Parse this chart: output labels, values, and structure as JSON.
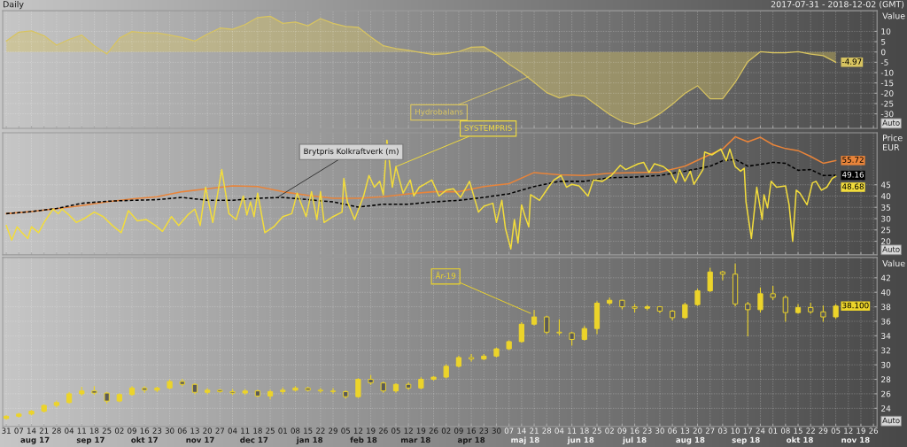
{
  "chart_data": [
    {
      "type": "area",
      "title": "Daily",
      "subtitle": "2017-07-31 - 2018-12-02 (GMT)",
      "ylabel": "Value",
      "x": [
        "2017-07-31",
        "2017-08-07",
        "2017-08-14",
        "2017-08-21",
        "2017-08-28",
        "2017-09-04",
        "2017-09-11",
        "2017-09-18",
        "2017-09-25",
        "2017-10-02",
        "2017-10-09",
        "2017-10-16",
        "2017-10-23",
        "2017-10-30",
        "2017-11-06",
        "2017-11-13",
        "2017-11-20",
        "2017-11-27",
        "2017-12-04",
        "2017-12-11",
        "2017-12-18",
        "2017-12-25",
        "2018-01-01",
        "2018-01-08",
        "2018-01-15",
        "2018-01-22",
        "2018-01-29",
        "2018-02-05",
        "2018-02-12",
        "2018-02-19",
        "2018-02-26",
        "2018-03-05",
        "2018-03-12",
        "2018-03-19",
        "2018-03-26",
        "2018-04-02",
        "2018-04-09",
        "2018-04-16",
        "2018-04-23",
        "2018-04-30",
        "2018-05-07",
        "2018-05-14",
        "2018-05-21",
        "2018-05-28",
        "2018-06-04",
        "2018-06-11",
        "2018-06-18",
        "2018-06-25",
        "2018-07-02",
        "2018-07-09",
        "2018-07-16",
        "2018-07-23",
        "2018-07-30",
        "2018-08-06",
        "2018-08-13",
        "2018-08-20",
        "2018-08-27",
        "2018-09-03",
        "2018-09-10",
        "2018-09-17",
        "2018-09-24",
        "2018-10-01",
        "2018-10-08",
        "2018-10-15",
        "2018-10-22",
        "2018-10-29",
        "2018-11-05"
      ],
      "series": [
        {
          "color": "#d8c460",
          "values": [
            5.3,
            9.6,
            10.2,
            7.9,
            3.3,
            6.1,
            8.2,
            3.0,
            -1.0,
            6.7,
            9.9,
            9.3,
            9.3,
            8.2,
            7.0,
            5.3,
            8.7,
            11.6,
            11.0,
            13.3,
            16.7,
            17.3,
            13.9,
            14.5,
            12.7,
            16.2,
            13.9,
            12.4,
            12.0,
            7.3,
            3.0,
            1.7,
            0.8,
            -0.3,
            -1.2,
            -0.8,
            0.2,
            2.3,
            2.5,
            -1.3,
            -5.9,
            -9.9,
            -14.7,
            -19.7,
            -22.3,
            -20.8,
            -21.4,
            -25.9,
            -30.3,
            -33.7,
            -35.0,
            -33.5,
            -29.9,
            -25.3,
            -20.1,
            -16.4,
            -22.7,
            -22.7,
            -14.7,
            -4.7,
            0.1,
            -0.4,
            -0.4,
            0.1,
            -1.0,
            -1.8,
            -4.97
          ]
        }
      ],
      "xlim": [
        "2017-07-29",
        "2018-11-28"
      ],
      "ylim": [
        -37,
        20
      ],
      "yticks": [
        -30,
        -25,
        -20,
        -15,
        -10,
        -5,
        0,
        5,
        10
      ],
      "grid": true,
      "tick_labels": "y",
      "annotations": [
        {
          "text": "Hydrobalans",
          "x": "2018-05-18",
          "y": -12
        },
        {
          "text": "-4.97",
          "x": "2018-11-05",
          "y": -4.97
        },
        "Auto"
      ]
    },
    {
      "type": "line",
      "ylabel": "Price EUR",
      "series": [
        {
          "color": "#e8843a",
          "x": [
            "2017-07-31",
            "2017-08-14",
            "2017-08-28",
            "2017-09-11",
            "2017-09-25",
            "2017-10-09",
            "2017-10-23",
            "2017-11-06",
            "2017-11-20",
            "2017-12-04",
            "2017-12-18",
            "2018-01-01",
            "2018-01-15",
            "2018-01-29",
            "2018-02-12",
            "2018-02-26",
            "2018-03-12",
            "2018-03-26",
            "2018-04-09",
            "2018-04-23",
            "2018-05-07",
            "2018-05-21",
            "2018-06-04",
            "2018-06-18",
            "2018-07-02",
            "2018-07-16",
            "2018-07-30",
            "2018-08-13",
            "2018-08-27",
            "2018-09-03",
            "2018-09-10",
            "2018-09-17",
            "2018-09-24",
            "2018-10-01",
            "2018-10-08",
            "2018-10-15",
            "2018-10-22",
            "2018-10-29",
            "2018-11-05"
          ],
          "values": [
            32.2,
            33.1,
            34.4,
            35.8,
            37.4,
            38.7,
            39.7,
            41.9,
            43.2,
            44.5,
            44.2,
            41.9,
            40.3,
            39.0,
            39.0,
            39.7,
            41.0,
            41.9,
            41.9,
            44.2,
            45.5,
            50.4,
            49.4,
            49.1,
            50.1,
            50.4,
            50.6,
            53.2,
            58.4,
            60.8,
            66.2,
            64.0,
            66.0,
            62.7,
            61.0,
            60.1,
            57.5,
            54.5,
            55.72
          ]
        },
        {
          "color": "#000000",
          "line_style": "dashed",
          "x": [
            "2017-07-31",
            "2017-08-14",
            "2017-08-28",
            "2017-09-11",
            "2017-09-25",
            "2017-10-09",
            "2017-10-23",
            "2017-11-06",
            "2017-11-20",
            "2017-12-04",
            "2017-12-18",
            "2018-01-01",
            "2018-01-15",
            "2018-01-29",
            "2018-02-12",
            "2018-02-26",
            "2018-03-12",
            "2018-03-26",
            "2018-04-09",
            "2018-04-23",
            "2018-05-07",
            "2018-05-21",
            "2018-06-04",
            "2018-06-18",
            "2018-07-02",
            "2018-07-16",
            "2018-07-30",
            "2018-08-13",
            "2018-08-27",
            "2018-09-03",
            "2018-09-10",
            "2018-09-17",
            "2018-09-24",
            "2018-10-01",
            "2018-10-08",
            "2018-10-15",
            "2018-10-22",
            "2018-10-29",
            "2018-11-05"
          ],
          "values": [
            32.2,
            33.1,
            34.5,
            36.8,
            37.7,
            38.1,
            38.4,
            39.4,
            38.1,
            38.1,
            39.0,
            39.4,
            38.4,
            37.4,
            35.1,
            36.4,
            36.4,
            37.4,
            38.1,
            39.4,
            41.0,
            44.2,
            46.5,
            46.5,
            48.1,
            48.4,
            49.1,
            51.0,
            53.2,
            55.6,
            56.2,
            53.2,
            54.0,
            54.9,
            54.5,
            51.4,
            51.7,
            49.1,
            49.16
          ]
        },
        {
          "color": "#f2dc3c",
          "x": [
            "2017-07-31",
            "2017-08-03",
            "2017-08-06",
            "2017-08-08",
            "2017-08-12",
            "2017-08-14",
            "2017-08-18",
            "2017-08-21",
            "2017-08-26",
            "2017-08-29",
            "2017-08-31",
            "2017-09-04",
            "2017-09-08",
            "2017-09-13",
            "2017-09-18",
            "2017-09-23",
            "2017-09-28",
            "2017-10-03",
            "2017-10-07",
            "2017-10-12",
            "2017-10-17",
            "2017-10-22",
            "2017-10-26",
            "2017-10-31",
            "2017-11-04",
            "2017-11-09",
            "2017-11-13",
            "2017-11-16",
            "2017-11-19",
            "2017-11-23",
            "2017-11-28",
            "2017-12-02",
            "2017-12-06",
            "2017-12-10",
            "2017-12-12",
            "2017-12-14",
            "2017-12-16",
            "2017-12-18",
            "2017-12-22",
            "2017-12-27",
            "2018-01-01",
            "2018-01-06",
            "2018-01-09",
            "2018-01-14",
            "2018-01-17",
            "2018-01-20",
            "2018-01-22",
            "2018-01-24",
            "2018-01-29",
            "2018-02-03",
            "2018-02-04",
            "2018-02-06",
            "2018-02-10",
            "2018-02-15",
            "2018-02-18",
            "2018-02-21",
            "2018-02-24",
            "2018-02-26",
            "2018-02-28",
            "2018-03-03",
            "2018-03-05",
            "2018-03-09",
            "2018-03-13",
            "2018-03-15",
            "2018-03-18",
            "2018-03-21",
            "2018-03-25",
            "2018-03-29",
            "2018-04-02",
            "2018-04-06",
            "2018-04-10",
            "2018-04-15",
            "2018-04-20",
            "2018-04-23",
            "2018-04-28",
            "2018-04-30",
            "2018-05-03",
            "2018-05-05",
            "2018-05-08",
            "2018-05-10",
            "2018-05-12",
            "2018-05-14",
            "2018-05-16",
            "2018-05-18",
            "2018-05-19",
            "2018-05-24",
            "2018-05-29",
            "2018-06-01",
            "2018-06-05",
            "2018-06-08",
            "2018-06-11",
            "2018-06-15",
            "2018-06-20",
            "2018-06-23",
            "2018-06-28",
            "2018-07-03",
            "2018-07-08",
            "2018-07-11",
            "2018-07-18",
            "2018-07-21",
            "2018-07-24",
            "2018-07-27",
            "2018-08-01",
            "2018-08-05",
            "2018-08-08",
            "2018-08-10",
            "2018-08-13",
            "2018-08-16",
            "2018-08-18",
            "2018-08-23",
            "2018-08-24",
            "2018-08-28",
            "2018-09-02",
            "2018-09-05",
            "2018-09-07",
            "2018-09-10",
            "2018-09-13",
            "2018-09-15",
            "2018-09-16",
            "2018-09-19",
            "2018-09-21",
            "2018-09-22",
            "2018-09-25",
            "2018-09-26",
            "2018-09-28",
            "2018-09-30",
            "2018-10-03",
            "2018-10-08",
            "2018-10-10",
            "2018-10-12",
            "2018-10-14",
            "2018-10-16",
            "2018-10-20",
            "2018-10-23",
            "2018-10-25",
            "2018-10-28",
            "2018-10-31",
            "2018-11-03",
            "2018-11-05"
          ],
          "values": [
            27.0,
            20.5,
            26.4,
            24.4,
            21.2,
            26.4,
            23.8,
            28.3,
            34.2,
            32.2,
            34.2,
            31.6,
            28.3,
            30.3,
            32.9,
            30.9,
            27.0,
            23.8,
            33.5,
            29.0,
            29.6,
            27.0,
            24.4,
            30.9,
            27.0,
            31.6,
            34.2,
            27.0,
            43.9,
            28.3,
            51.7,
            32.2,
            29.6,
            40.0,
            31.6,
            37.4,
            30.9,
            41.3,
            23.8,
            26.4,
            30.9,
            32.2,
            41.3,
            30.9,
            41.9,
            29.6,
            41.9,
            28.3,
            30.9,
            32.9,
            47.8,
            37.4,
            29.6,
            40.0,
            49.1,
            43.9,
            46.5,
            40.6,
            64.7,
            43.9,
            53.0,
            41.3,
            47.1,
            40.0,
            43.9,
            45.2,
            47.1,
            40.0,
            42.6,
            43.2,
            39.4,
            46.5,
            32.9,
            35.5,
            36.8,
            28.3,
            38.1,
            25.7,
            16.6,
            29.6,
            19.2,
            36.1,
            30.9,
            26.4,
            40.6,
            38.1,
            43.9,
            47.1,
            49.1,
            43.9,
            45.2,
            44.5,
            40.0,
            47.1,
            46.5,
            49.1,
            53.6,
            51.7,
            54.3,
            54.9,
            50.4,
            54.3,
            53.0,
            50.4,
            45.8,
            51.7,
            46.5,
            51.0,
            45.2,
            51.7,
            59.5,
            58.2,
            60.8,
            55.6,
            60.8,
            53.0,
            51.0,
            52.3,
            37.4,
            21.2,
            36.1,
            43.9,
            29.6,
            40.6,
            34.8,
            46.5,
            43.9,
            44.5,
            36.1,
            19.9,
            42.6,
            41.3,
            36.1,
            45.8,
            46.5,
            42.6,
            43.9,
            47.8,
            48.68
          ]
        }
      ],
      "xlim": [
        "2017-07-29",
        "2018-11-28"
      ],
      "ylim": [
        14,
        68
      ],
      "yticks": [
        20,
        25,
        30,
        35,
        40,
        45
      ],
      "grid": true,
      "tick_labels": "y",
      "annotations": [
        {
          "text": "Brytpris Kolkraftverk (m)",
          "x": "2017-12-29",
          "y": 39.4
        },
        {
          "text": "SYSTEMPRIS",
          "x": "2018-03-05",
          "y": 53.0
        },
        {
          "text": "55.72",
          "x": "2018-11-05",
          "y": 55.72
        },
        {
          "text": "49.16",
          "x": "2018-11-05",
          "y": 49.16
        },
        {
          "text": "48.68",
          "x": "2018-11-05",
          "y": 48.68
        },
        "Auto"
      ]
    },
    {
      "type": "candlestick",
      "ylabel": "Value",
      "color": "#ecd42a",
      "x": [
        "2017-07-31",
        "2017-08-07",
        "2017-08-14",
        "2017-08-21",
        "2017-08-28",
        "2017-09-04",
        "2017-09-11",
        "2017-09-18",
        "2017-09-25",
        "2017-10-02",
        "2017-10-09",
        "2017-10-16",
        "2017-10-23",
        "2017-10-30",
        "2017-11-06",
        "2017-11-13",
        "2017-11-20",
        "2017-11-27",
        "2017-12-04",
        "2017-12-11",
        "2017-12-18",
        "2017-12-25",
        "2018-01-01",
        "2018-01-08",
        "2018-01-15",
        "2018-01-22",
        "2018-01-29",
        "2018-02-05",
        "2018-02-12",
        "2018-02-19",
        "2018-02-26",
        "2018-03-05",
        "2018-03-12",
        "2018-03-19",
        "2018-03-26",
        "2018-04-02",
        "2018-04-09",
        "2018-04-16",
        "2018-04-23",
        "2018-04-30",
        "2018-05-07",
        "2018-05-14",
        "2018-05-21",
        "2018-05-28",
        "2018-06-04",
        "2018-06-11",
        "2018-06-18",
        "2018-06-25",
        "2018-07-02",
        "2018-07-09",
        "2018-07-16",
        "2018-07-23",
        "2018-07-30",
        "2018-08-06",
        "2018-08-13",
        "2018-08-20",
        "2018-08-27",
        "2018-09-03",
        "2018-09-10",
        "2018-09-17",
        "2018-09-24",
        "2018-10-01",
        "2018-10-08",
        "2018-10-15",
        "2018-10-22",
        "2018-10-29",
        "2018-11-05"
      ],
      "ohlc": [
        [
          22.6,
          23.0,
          22.5,
          22.9
        ],
        [
          22.9,
          23.3,
          22.8,
          23.2
        ],
        [
          23.2,
          23.7,
          23.1,
          23.6
        ],
        [
          23.6,
          24.5,
          23.5,
          24.4
        ],
        [
          24.4,
          25.0,
          24.2,
          24.8
        ],
        [
          24.8,
          26.2,
          24.7,
          26.0
        ],
        [
          26.0,
          26.9,
          25.8,
          26.4
        ],
        [
          26.4,
          27.0,
          25.9,
          26.1
        ],
        [
          26.1,
          26.2,
          24.7,
          25.0
        ],
        [
          25.0,
          26.0,
          24.9,
          25.9
        ],
        [
          25.9,
          27.0,
          25.8,
          26.8
        ],
        [
          26.8,
          27.0,
          26.2,
          26.5
        ],
        [
          26.5,
          26.9,
          26.3,
          26.8
        ],
        [
          26.8,
          27.9,
          26.7,
          27.7
        ],
        [
          27.7,
          28.0,
          27.1,
          27.3
        ],
        [
          27.3,
          27.4,
          26.0,
          26.2
        ],
        [
          26.2,
          26.7,
          26.0,
          26.5
        ],
        [
          26.5,
          26.6,
          26.2,
          26.3
        ],
        [
          26.3,
          26.6,
          25.9,
          26.1
        ],
        [
          26.1,
          26.6,
          25.9,
          26.4
        ],
        [
          26.4,
          26.5,
          25.6,
          25.7
        ],
        [
          25.7,
          26.5,
          25.3,
          26.3
        ],
        [
          26.3,
          26.8,
          26.0,
          26.5
        ],
        [
          26.5,
          27.0,
          26.4,
          26.8
        ],
        [
          26.8,
          26.9,
          26.4,
          26.5
        ],
        [
          26.5,
          26.7,
          26.2,
          26.4
        ],
        [
          26.4,
          26.7,
          26.1,
          26.3
        ],
        [
          26.3,
          26.4,
          25.4,
          25.6
        ],
        [
          25.6,
          28.1,
          25.5,
          28.0
        ],
        [
          28.0,
          28.5,
          27.3,
          27.5
        ],
        [
          27.5,
          27.6,
          26.2,
          26.4
        ],
        [
          26.4,
          27.4,
          26.2,
          27.3
        ],
        [
          27.3,
          27.5,
          26.6,
          26.8
        ],
        [
          26.8,
          28.2,
          26.7,
          28.0
        ],
        [
          28.0,
          28.4,
          27.9,
          28.3
        ],
        [
          28.3,
          30.0,
          28.2,
          29.8
        ],
        [
          29.8,
          31.2,
          29.7,
          31.0
        ],
        [
          31.0,
          31.4,
          30.5,
          30.8
        ],
        [
          30.8,
          31.4,
          30.7,
          31.2
        ],
        [
          31.2,
          32.3,
          31.1,
          32.2
        ],
        [
          32.2,
          33.3,
          32.1,
          33.2
        ],
        [
          33.2,
          35.8,
          33.1,
          35.6
        ],
        [
          35.6,
          37.5,
          35.5,
          36.6
        ],
        [
          36.6,
          36.7,
          34.3,
          34.5
        ],
        [
          34.5,
          36.2,
          34.1,
          34.4
        ],
        [
          34.4,
          34.5,
          32.7,
          33.5
        ],
        [
          33.5,
          35.3,
          33.4,
          35.0
        ],
        [
          35.0,
          38.7,
          34.3,
          38.5
        ],
        [
          38.5,
          39.2,
          38.3,
          38.9
        ],
        [
          38.9,
          38.9,
          37.7,
          38.0
        ],
        [
          38.0,
          38.3,
          37.3,
          37.8
        ],
        [
          37.8,
          38.2,
          37.6,
          38.0
        ],
        [
          38.0,
          38.0,
          37.2,
          37.4
        ],
        [
          37.4,
          37.5,
          36.2,
          36.5
        ],
        [
          36.5,
          38.5,
          36.4,
          38.3
        ],
        [
          38.3,
          40.4,
          38.2,
          40.2
        ],
        [
          40.2,
          43.3,
          40.1,
          42.8
        ],
        [
          42.8,
          42.9,
          41.7,
          42.5
        ],
        [
          42.5,
          43.9,
          38.1,
          38.4
        ],
        [
          38.4,
          38.6,
          34.0,
          37.6
        ],
        [
          37.6,
          40.6,
          37.3,
          39.8
        ],
        [
          39.8,
          40.8,
          39.0,
          39.3
        ],
        [
          39.3,
          39.5,
          36.0,
          37.2
        ],
        [
          37.2,
          38.3,
          37.1,
          37.9
        ],
        [
          37.9,
          38.5,
          37.1,
          37.3
        ],
        [
          37.3,
          38.1,
          36.0,
          36.6
        ],
        [
          36.6,
          38.3,
          36.4,
          38.1
        ]
      ],
      "xlim": [
        "2017-07-29",
        "2018-11-28"
      ],
      "ylim": [
        21.5,
        44.8
      ],
      "yticks": [
        24,
        26,
        28,
        30,
        32,
        34,
        36,
        38,
        40,
        42
      ],
      "xticks": [
        {
          "value": "2017-07-31",
          "label": "31"
        },
        {
          "value": "2017-08-07",
          "label": "07"
        },
        {
          "value": "2017-08-14",
          "label": "14"
        },
        {
          "value": "2017-08-21",
          "label": "21"
        },
        {
          "value": "2017-08-28",
          "label": "28"
        },
        {
          "value": "2017-09-04",
          "label": "04"
        },
        {
          "value": "2017-09-11",
          "label": "11"
        },
        {
          "value": "2017-09-18",
          "label": "18"
        },
        {
          "value": "2017-09-25",
          "label": "25"
        },
        {
          "value": "2017-10-02",
          "label": "02"
        },
        {
          "value": "2017-10-09",
          "label": "09"
        },
        {
          "value": "2017-10-16",
          "label": "16"
        },
        {
          "value": "2017-10-23",
          "label": "23"
        },
        {
          "value": "2017-10-30",
          "label": "30"
        },
        {
          "value": "2017-11-06",
          "label": "06"
        },
        {
          "value": "2017-11-13",
          "label": "13"
        },
        {
          "value": "2017-11-20",
          "label": "20"
        },
        {
          "value": "2017-11-27",
          "label": "27"
        },
        {
          "value": "2017-12-04",
          "label": "04"
        },
        {
          "value": "2017-12-11",
          "label": "11"
        },
        {
          "value": "2017-12-18",
          "label": "18"
        },
        {
          "value": "2017-12-25",
          "label": "25"
        },
        {
          "value": "2018-01-01",
          "label": "01"
        },
        {
          "value": "2018-01-08",
          "label": "08"
        },
        {
          "value": "2018-01-15",
          "label": "15"
        },
        {
          "value": "2018-01-22",
          "label": "22"
        },
        {
          "value": "2018-01-29",
          "label": "29"
        },
        {
          "value": "2018-02-05",
          "label": "05"
        },
        {
          "value": "2018-02-12",
          "label": "12"
        },
        {
          "value": "2018-02-19",
          "label": "19"
        },
        {
          "value": "2018-02-26",
          "label": "26"
        },
        {
          "value": "2018-03-05",
          "label": "05"
        },
        {
          "value": "2018-03-12",
          "label": "12"
        },
        {
          "value": "2018-03-19",
          "label": "19"
        },
        {
          "value": "2018-03-26",
          "label": "26"
        },
        {
          "value": "2018-04-02",
          "label": "02"
        },
        {
          "value": "2018-04-09",
          "label": "09"
        },
        {
          "value": "2018-04-16",
          "label": "16"
        },
        {
          "value": "2018-04-23",
          "label": "23"
        },
        {
          "value": "2018-04-30",
          "label": "30"
        },
        {
          "value": "2018-05-07",
          "label": "07"
        },
        {
          "value": "2018-05-14",
          "label": "14"
        },
        {
          "value": "2018-05-21",
          "label": "21"
        },
        {
          "value": "2018-05-28",
          "label": "28"
        },
        {
          "value": "2018-06-04",
          "label": "04"
        },
        {
          "value": "2018-06-11",
          "label": "11"
        },
        {
          "value": "2018-06-18",
          "label": "18"
        },
        {
          "value": "2018-06-25",
          "label": "25"
        },
        {
          "value": "2018-07-02",
          "label": "02"
        },
        {
          "value": "2018-07-09",
          "label": "09"
        },
        {
          "value": "2018-07-16",
          "label": "16"
        },
        {
          "value": "2018-07-23",
          "label": "23"
        },
        {
          "value": "2018-07-30",
          "label": "30"
        },
        {
          "value": "2018-08-06",
          "label": "06"
        },
        {
          "value": "2018-08-13",
          "label": "13"
        },
        {
          "value": "2018-08-20",
          "label": "20"
        },
        {
          "value": "2018-08-27",
          "label": "27"
        },
        {
          "value": "2018-09-03",
          "label": "03"
        },
        {
          "value": "2018-09-10",
          "label": "10"
        },
        {
          "value": "2018-09-17",
          "label": "17"
        },
        {
          "value": "2018-09-24",
          "label": "24"
        },
        {
          "value": "2018-10-01",
          "label": "01"
        },
        {
          "value": "2018-10-08",
          "label": "08"
        },
        {
          "value": "2018-10-15",
          "label": "15"
        },
        {
          "value": "2018-10-22",
          "label": "22"
        },
        {
          "value": "2018-10-29",
          "label": "29"
        },
        {
          "value": "2018-11-05",
          "label": "05"
        },
        {
          "value": "2018-11-12",
          "label": "12"
        },
        {
          "value": "2018-11-19",
          "label": "19"
        },
        {
          "value": "2018-11-26",
          "label": "26"
        }
      ],
      "x2lim": [
        "2017-07-29",
        "2018-11-28"
      ],
      "x2ticks": [
        {
          "value": "2017-08-16",
          "label": "aug 17"
        },
        {
          "value": "2017-09-16",
          "label": "sep 17"
        },
        {
          "value": "2017-10-16",
          "label": "okt 17"
        },
        {
          "value": "2017-11-16",
          "label": "nov 17"
        },
        {
          "value": "2017-12-16",
          "label": "dec 17"
        },
        {
          "value": "2018-01-16",
          "label": "jan 18"
        },
        {
          "value": "2018-02-15",
          "label": "feb 18"
        },
        {
          "value": "2018-03-16",
          "label": "mar 18"
        },
        {
          "value": "2018-04-16",
          "label": "apr 18"
        },
        {
          "value": "2018-05-16",
          "label": "maj 18"
        },
        {
          "value": "2018-06-16",
          "label": "jun 18"
        },
        {
          "value": "2018-07-16",
          "label": "jul 18"
        },
        {
          "value": "2018-08-16",
          "label": "aug 18"
        },
        {
          "value": "2018-09-16",
          "label": "sep 18"
        },
        {
          "value": "2018-10-16",
          "label": "okt 18"
        },
        {
          "value": "2018-11-16",
          "label": "nov 18"
        }
      ],
      "grid": true,
      "annotations": [
        {
          "text": "År-19",
          "x": "2018-05-19",
          "y": 37.1
        },
        {
          "text": "38.100",
          "x": "2018-11-05",
          "y": 38.1
        },
        "Auto"
      ]
    }
  ]
}
